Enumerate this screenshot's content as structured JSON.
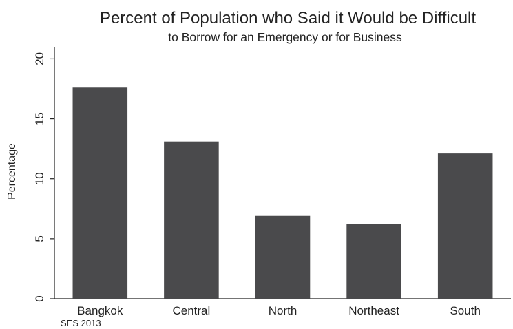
{
  "chart_data": {
    "type": "bar",
    "title": "Percent of Population who Said it Would be Difficult",
    "subtitle": "to Borrow for an Emergency or for Business",
    "xlabel": "",
    "ylabel": "Percentage",
    "categories": [
      "Bangkok",
      "Central",
      "North",
      "Northeast",
      "South"
    ],
    "values": [
      17.6,
      13.1,
      6.9,
      6.2,
      12.1
    ],
    "ylim": [
      0,
      21
    ],
    "yticks": [
      0,
      5,
      10,
      15,
      20
    ],
    "grid": false,
    "legend": "none",
    "bar_color": "#4a4a4c",
    "note": "SES 2013"
  }
}
